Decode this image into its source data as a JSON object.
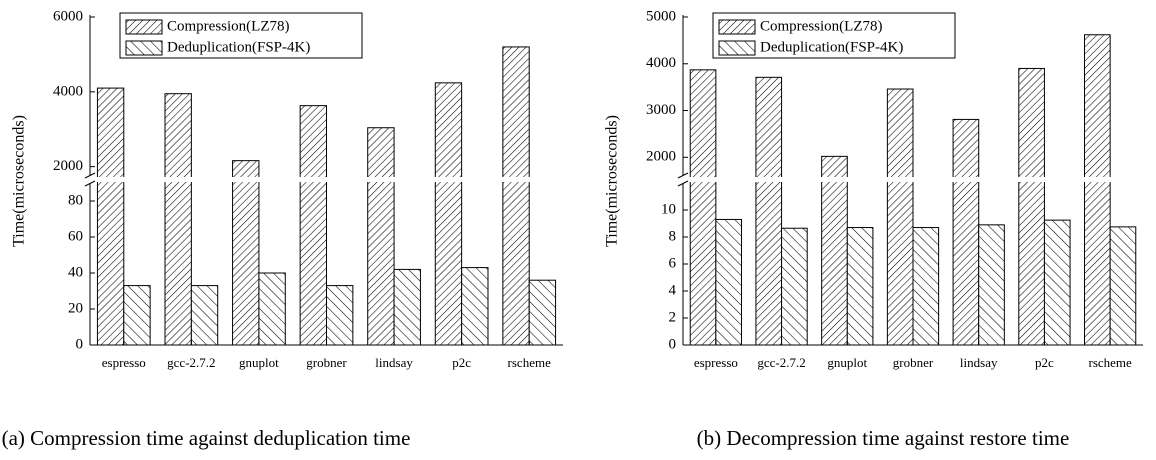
{
  "chart_data": [
    {
      "type": "bar",
      "caption": "(a) Compression time against deduplication time",
      "ylabel": "Time(microseconds)",
      "categories": [
        "espresso",
        "gcc-2.7.2",
        "gnuplot",
        "grobner",
        "lindsay",
        "p2c",
        "rscheme"
      ],
      "series": [
        {
          "name": "Compression(LZ78)",
          "color": "#000000",
          "hatch": "forward",
          "values": [
            4100,
            3950,
            2160,
            3630,
            3040,
            4240,
            5200
          ]
        },
        {
          "name": "Deduplication(FSP-4K)",
          "color": "#000000",
          "hatch": "backward",
          "values": [
            33,
            33,
            40,
            33,
            42,
            43,
            36
          ]
        }
      ],
      "ylim": [
        0,
        90
      ],
      "yticks": [
        0,
        20,
        40,
        60,
        80
      ],
      "upper_ylim": [
        1750,
        6000
      ],
      "upper_yticks": [
        2000,
        4000,
        6000
      ],
      "legend": "upper left"
    },
    {
      "type": "bar",
      "caption": "(b) Decompression time against restore time",
      "ylabel": "Time(microseconds)",
      "categories": [
        "espresso",
        "gcc-2.7.2",
        "gnuplot",
        "grobner",
        "lindsay",
        "p2c",
        "rscheme"
      ],
      "series": [
        {
          "name": "Compression(LZ78)",
          "color": "#000000",
          "hatch": "forward",
          "values": [
            3870,
            3710,
            2020,
            3460,
            2810,
            3900,
            4620
          ]
        },
        {
          "name": "Deduplication(FSP-4K)",
          "color": "#000000",
          "hatch": "backward",
          "values": [
            9.3,
            8.65,
            8.7,
            8.7,
            8.9,
            9.25,
            8.75
          ]
        }
      ],
      "ylim": [
        0,
        12
      ],
      "yticks": [
        0,
        2,
        4,
        6,
        8,
        10
      ],
      "upper_ylim": [
        1600,
        5000
      ],
      "upper_yticks": [
        2000,
        3000,
        4000,
        5000
      ],
      "legend": "upper left"
    }
  ]
}
